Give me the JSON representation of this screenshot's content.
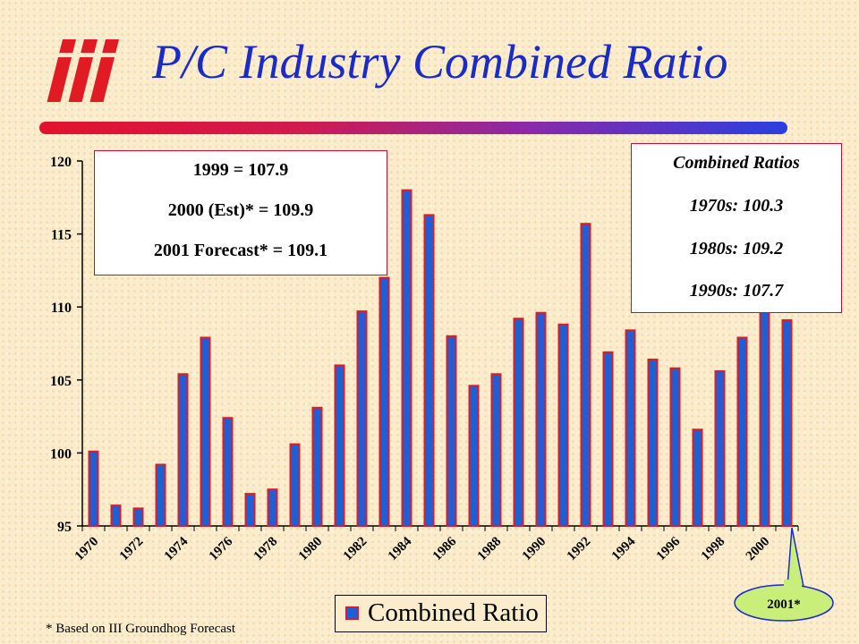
{
  "title": "P/C Industry Combined Ratio",
  "logo_text": "iii",
  "colors": {
    "bar_fill": "#1f5fd6",
    "bar_edge": "#e01b24",
    "title": "#1a2bc8",
    "box_border": "#c8102e",
    "callout_fill": "#c9ef7a"
  },
  "stats_box": {
    "line1": "1999 = 107.9",
    "line2": "2000 (Est)* = 109.9",
    "line3": "2001 Forecast* = 109.1"
  },
  "ratios_box": {
    "heading": "Combined Ratios",
    "line1": "1970s: 100.3",
    "line2": "1980s: 109.2",
    "line3": "1990s: 107.7"
  },
  "legend_label": "Combined Ratio",
  "callout_label": "2001*",
  "footnote": "* Based on III Groundhog Forecast",
  "chart_data": {
    "type": "bar",
    "x": [
      1970,
      1971,
      1972,
      1973,
      1974,
      1975,
      1976,
      1977,
      1978,
      1979,
      1980,
      1981,
      1982,
      1983,
      1984,
      1985,
      1986,
      1987,
      1988,
      1989,
      1990,
      1991,
      1992,
      1993,
      1994,
      1995,
      1996,
      1997,
      1998,
      1999,
      2000,
      2001
    ],
    "tick_labels": [
      "1970",
      "1972",
      "1974",
      "1976",
      "1978",
      "1980",
      "1982",
      "1984",
      "1986",
      "1988",
      "1990",
      "1992",
      "1994",
      "1996",
      "1998",
      "2000"
    ],
    "series": [
      {
        "name": "Combined Ratio",
        "values": [
          100.1,
          96.4,
          96.2,
          99.2,
          105.4,
          107.9,
          102.4,
          97.2,
          97.5,
          100.6,
          103.1,
          106.0,
          109.7,
          112.0,
          118.0,
          116.3,
          108.0,
          104.6,
          105.4,
          109.2,
          109.6,
          108.8,
          115.7,
          106.9,
          108.4,
          106.4,
          105.8,
          101.6,
          105.6,
          107.9,
          109.9,
          109.1
        ]
      }
    ],
    "yticks": [
      95,
      100,
      105,
      110,
      115,
      120
    ],
    "ylim": [
      95,
      120
    ],
    "grid": false,
    "legend_position": "bottom"
  }
}
